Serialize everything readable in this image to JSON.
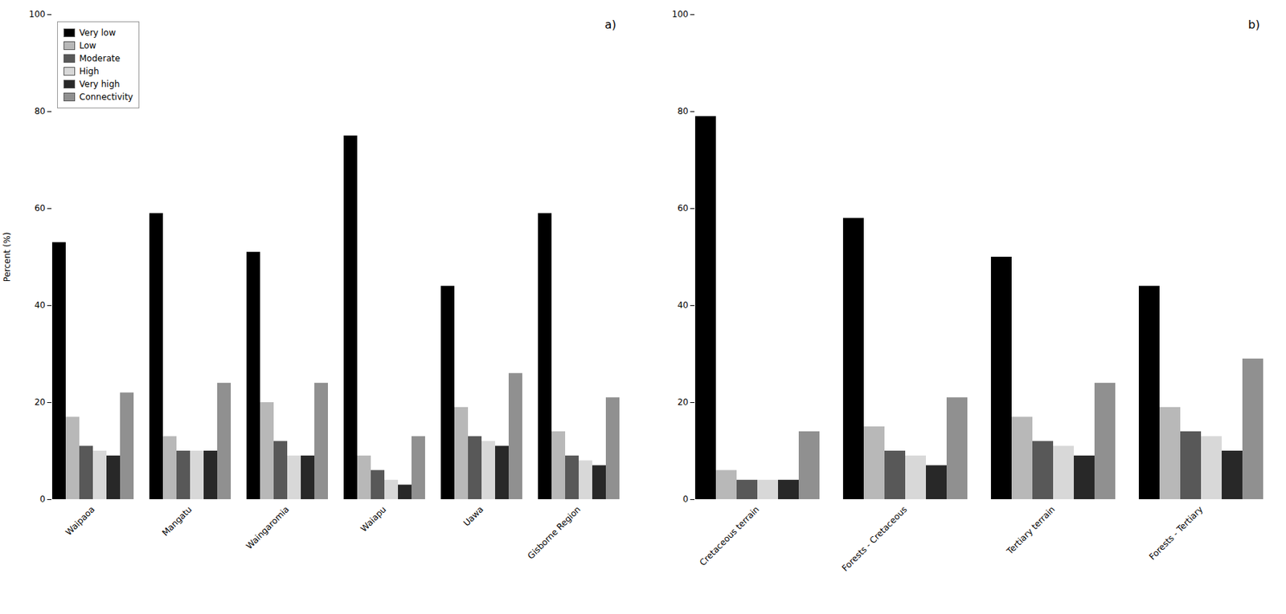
{
  "chart_data": [
    {
      "type": "bar",
      "categories": [
        "Waipaoa",
        "Mangatu",
        "Waingaromia",
        "Waiapu",
        "Uawa",
        "Gisborne Region"
      ],
      "series": [
        {
          "name": "Very low",
          "color": "#000000",
          "values": [
            53,
            59,
            51,
            75,
            44,
            59
          ]
        },
        {
          "name": "Low",
          "color": "#b8b8b8",
          "values": [
            17,
            13,
            20,
            9,
            19,
            14
          ]
        },
        {
          "name": "Moderate",
          "color": "#585858",
          "values": [
            11,
            10,
            12,
            6,
            13,
            9
          ]
        },
        {
          "name": "High",
          "color": "#d8d8d8",
          "values": [
            10,
            10,
            9,
            4,
            12,
            8
          ]
        },
        {
          "name": "Very high",
          "color": "#282828",
          "values": [
            9,
            10,
            9,
            3,
            11,
            7
          ]
        },
        {
          "name": "Connectivity",
          "color": "#909090",
          "values": [
            22,
            24,
            24,
            13,
            26,
            21
          ]
        }
      ],
      "ylabel": "Percent (%)",
      "annotation": "a)",
      "ylim": [
        0,
        100
      ],
      "yticks": [
        0,
        20,
        40,
        60,
        80,
        100
      ],
      "grid": false,
      "legend": "upper left"
    },
    {
      "type": "bar",
      "categories": [
        "Cretaceous terrain",
        "Forests - Cretaceous",
        "Tertiary terrain",
        "Forests - Tertiary"
      ],
      "series": [
        {
          "name": "Very low",
          "color": "#000000",
          "values": [
            79,
            58,
            50,
            44
          ]
        },
        {
          "name": "Low",
          "color": "#b8b8b8",
          "values": [
            6,
            15,
            17,
            19
          ]
        },
        {
          "name": "Moderate",
          "color": "#585858",
          "values": [
            4,
            10,
            12,
            14
          ]
        },
        {
          "name": "High",
          "color": "#d8d8d8",
          "values": [
            4,
            9,
            11,
            13
          ]
        },
        {
          "name": "Very high",
          "color": "#282828",
          "values": [
            4,
            7,
            9,
            10
          ]
        },
        {
          "name": "Connectivity",
          "color": "#909090",
          "values": [
            14,
            21,
            24,
            29
          ]
        }
      ],
      "annotation": "b)",
      "ylim": [
        0,
        100
      ],
      "yticks": [
        0,
        20,
        40,
        60,
        80,
        100
      ],
      "grid": false
    }
  ]
}
